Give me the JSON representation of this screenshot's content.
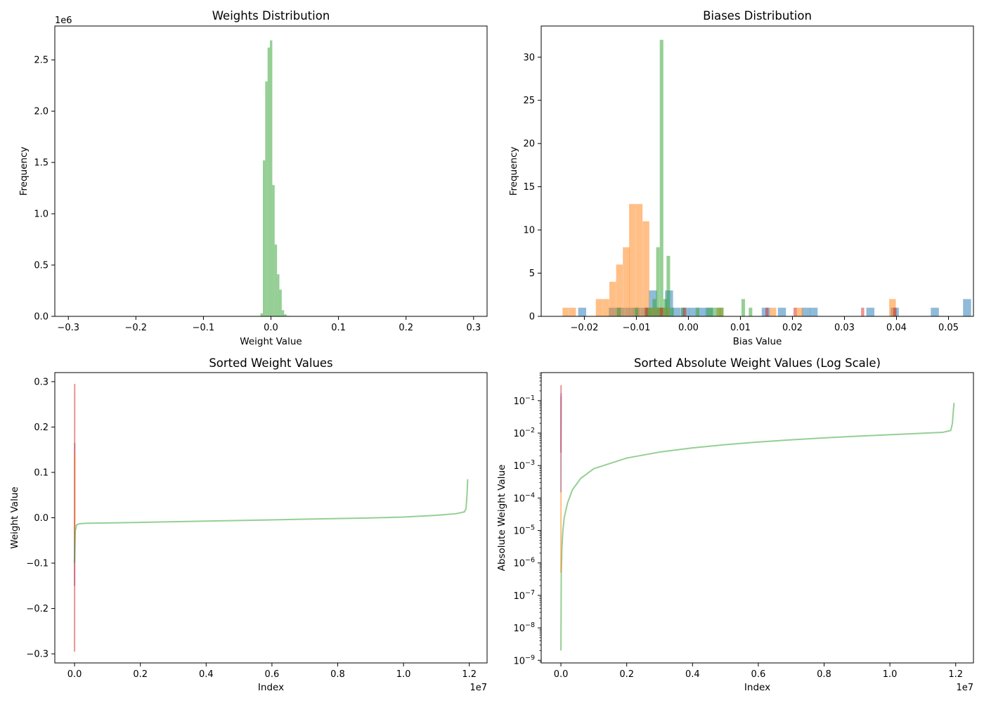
{
  "colors": {
    "blue": "#1f77b4",
    "orange": "#ff7f0e",
    "green": "#2ca02c",
    "red": "#d62728",
    "purple": "#9467bd",
    "bar_alpha": 0.5,
    "line_alpha": 0.5
  },
  "chart_data": [
    {
      "id": "weights",
      "type": "bar",
      "title": "Weights Distribution",
      "xlabel": "Weight Value",
      "ylabel": "Frequency",
      "xlim": [
        -0.32,
        0.32
      ],
      "ylim": [
        0,
        2830000
      ],
      "xticks": [
        -0.3,
        -0.2,
        -0.1,
        0.0,
        0.1,
        0.2,
        0.3
      ],
      "xtick_labels": [
        "−0.3",
        "−0.2",
        "−0.1",
        "0.0",
        "0.1",
        "0.2",
        "0.3"
      ],
      "yticks": [
        0,
        500000,
        1000000,
        1500000,
        2000000,
        2500000
      ],
      "ytick_labels": [
        "0.0",
        "0.5",
        "1.0",
        "1.5",
        "2.0",
        "2.5"
      ],
      "y_offset_label": "1e6",
      "series": [
        {
          "name": "green",
          "color": "green",
          "bin_width": 0.0035,
          "bins": [
            [
              -0.0155,
              30000
            ],
            [
              -0.012,
              1520000
            ],
            [
              -0.0085,
              2290000
            ],
            [
              -0.005,
              2620000
            ],
            [
              -0.0015,
              2690000
            ],
            [
              0.002,
              1280000
            ],
            [
              0.0055,
              700000
            ],
            [
              0.009,
              410000
            ],
            [
              0.0125,
              260000
            ],
            [
              0.016,
              60000
            ],
            [
              0.0195,
              20000
            ],
            [
              0.023,
              5000
            ]
          ]
        }
      ]
    },
    {
      "id": "biases",
      "type": "bar",
      "title": "Biases Distribution",
      "xlabel": "Bias Value",
      "ylabel": "Frequency",
      "xlim": [
        -0.0283,
        0.0548
      ],
      "ylim": [
        0,
        33.6
      ],
      "xticks": [
        -0.02,
        -0.01,
        0.0,
        0.01,
        0.02,
        0.03,
        0.04,
        0.05
      ],
      "xtick_labels": [
        "−0.02",
        "−0.01",
        "0.00",
        "0.01",
        "0.02",
        "0.03",
        "0.04",
        "0.05"
      ],
      "yticks": [
        0,
        5,
        10,
        15,
        20,
        25,
        30
      ],
      "ytick_labels": [
        "0",
        "5",
        "10",
        "15",
        "20",
        "25",
        "30"
      ],
      "series": [
        {
          "name": "blue",
          "color": "blue",
          "bin_width": 0.00155,
          "bins": [
            [
              -0.0212,
              1
            ],
            [
              -0.0153,
              1
            ],
            [
              -0.0138,
              1
            ],
            [
              -0.0122,
              1
            ],
            [
              -0.0107,
              1
            ],
            [
              -0.0091,
              1
            ],
            [
              -0.0076,
              3
            ],
            [
              -0.0061,
              1
            ],
            [
              -0.0045,
              3
            ],
            [
              -0.003,
              1
            ],
            [
              -0.0014,
              1
            ],
            [
              0.0001,
              1
            ],
            [
              0.0017,
              1
            ],
            [
              0.0032,
              1
            ],
            [
              0.0141,
              1
            ],
            [
              0.0172,
              1
            ],
            [
              0.0218,
              1
            ],
            [
              0.0233,
              1
            ],
            [
              0.0342,
              1
            ],
            [
              0.0389,
              1
            ],
            [
              0.0466,
              1
            ],
            [
              0.0528,
              2
            ]
          ]
        },
        {
          "name": "orange",
          "color": "orange",
          "bin_width": 0.00128,
          "bins": [
            [
              -0.0242,
              1
            ],
            [
              -0.0229,
              1
            ],
            [
              -0.0178,
              2
            ],
            [
              -0.0165,
              2
            ],
            [
              -0.0152,
              4
            ],
            [
              -0.0139,
              6
            ],
            [
              -0.0126,
              8
            ],
            [
              -0.0114,
              13
            ],
            [
              -0.0101,
              13
            ],
            [
              -0.0088,
              11
            ],
            [
              -0.0075,
              1
            ],
            [
              -0.0062,
              1
            ],
            [
              -0.0049,
              1
            ],
            [
              0.0054,
              1
            ],
            [
              0.0156,
              1
            ],
            [
              0.0207,
              1
            ],
            [
              0.0386,
              2
            ]
          ]
        },
        {
          "name": "green",
          "color": "green",
          "bin_width": 0.00068,
          "bins": [
            [
              -0.0137,
              1
            ],
            [
              -0.0103,
              1
            ],
            [
              -0.0082,
              1
            ],
            [
              -0.0076,
              1
            ],
            [
              -0.0069,
              2
            ],
            [
              -0.0062,
              8
            ],
            [
              -0.0055,
              32
            ],
            [
              -0.0048,
              2
            ],
            [
              -0.0042,
              7
            ],
            [
              -0.0035,
              1
            ],
            [
              -0.0014,
              1
            ],
            [
              0.0014,
              1
            ],
            [
              0.0034,
              1
            ],
            [
              0.0041,
              1
            ],
            [
              0.0048,
              1
            ],
            [
              0.0055,
              1
            ],
            [
              0.0061,
              1
            ],
            [
              0.0102,
              2
            ],
            [
              0.0116,
              1
            ]
          ]
        },
        {
          "name": "red",
          "color": "red",
          "bin_width": 0.0006,
          "bins": [
            [
              -0.0084,
              1
            ],
            [
              -0.0055,
              1
            ],
            [
              -0.001,
              1
            ],
            [
              0.0148,
              1
            ],
            [
              0.0202,
              1
            ],
            [
              0.0332,
              1
            ],
            [
              0.0394,
              1
            ]
          ]
        }
      ]
    },
    {
      "id": "sorted",
      "type": "line",
      "title": "Sorted Weight Values",
      "xlabel": "Index",
      "ylabel": "Weight Value",
      "xlim": [
        -600000,
        12540000
      ],
      "ylim": [
        -0.32,
        0.32
      ],
      "xticks": [
        0,
        2000000,
        4000000,
        6000000,
        8000000,
        10000000,
        12000000
      ],
      "xtick_labels": [
        "0.0",
        "0.2",
        "0.4",
        "0.6",
        "0.8",
        "1.0",
        "1.2"
      ],
      "x_offset_label": "1e7",
      "yticks": [
        -0.3,
        -0.2,
        -0.1,
        0.0,
        0.1,
        0.2,
        0.3
      ],
      "ytick_labels": [
        "−0.3",
        "−0.2",
        "−0.1",
        "0.0",
        "0.1",
        "0.2",
        "0.3"
      ],
      "series": [
        {
          "name": "purple",
          "color": "purple",
          "x": [
            0,
            2000,
            4000
          ],
          "y": [
            -0.15,
            0.0,
            0.165
          ]
        },
        {
          "name": "red",
          "color": "red",
          "x": [
            0,
            2000,
            4000
          ],
          "y": [
            -0.295,
            0.0,
            0.295
          ]
        },
        {
          "name": "orange",
          "color": "orange",
          "x": [
            0,
            2000,
            4000
          ],
          "y": [
            -0.05,
            0.0,
            0.14
          ]
        },
        {
          "name": "green",
          "color": "green",
          "x": [
            0,
            20000,
            60000,
            150000,
            400000,
            1000000,
            2000000,
            3000000,
            4000000,
            5000000,
            6000000,
            7000000,
            8000000,
            9000000,
            10000000,
            11000000,
            11600000,
            11850000,
            11900000,
            11930000,
            11950000
          ],
          "y": [
            -0.1,
            -0.03,
            -0.016,
            -0.013,
            -0.012,
            -0.0115,
            -0.0102,
            -0.0088,
            -0.0074,
            -0.006,
            -0.0046,
            -0.0032,
            -0.0018,
            -0.0004,
            0.0015,
            0.0055,
            0.009,
            0.013,
            0.02,
            0.05,
            0.085
          ]
        }
      ]
    },
    {
      "id": "abs",
      "type": "line",
      "title": "Sorted Absolute Weight Values (Log Scale)",
      "xlabel": "Index",
      "ylabel": "Absolute Weight Value",
      "yscale": "log",
      "xlim": [
        -600000,
        12540000
      ],
      "ylim": [
        8.3e-10,
        0.73
      ],
      "xticks": [
        0,
        2000000,
        4000000,
        6000000,
        8000000,
        10000000,
        12000000
      ],
      "xtick_labels": [
        "0.0",
        "0.2",
        "0.4",
        "0.6",
        "0.8",
        "1.0",
        "1.2"
      ],
      "x_offset_label": "1e7",
      "yticks_exponents": [
        -9,
        -8,
        -7,
        -6,
        -5,
        -4,
        -3,
        -2,
        -1
      ],
      "series": [
        {
          "name": "green",
          "color": "green",
          "x": [
            0,
            10000,
            30000,
            60000,
            100000,
            200000,
            350000,
            600000,
            1000000,
            2000000,
            3000000,
            4000000,
            5000000,
            6000000,
            7000000,
            8000000,
            9000000,
            10000000,
            11000000,
            11600000,
            11850000,
            11900000,
            11930000,
            11950000
          ],
          "y": [
            2e-09,
            5e-07,
            3e-06,
            1e-05,
            2.5e-05,
            7e-05,
            0.00018,
            0.0004,
            0.0008,
            0.0017,
            0.0026,
            0.0035,
            0.0044,
            0.0053,
            0.0062,
            0.0071,
            0.008,
            0.0089,
            0.0099,
            0.0105,
            0.012,
            0.02,
            0.05,
            0.085
          ]
        },
        {
          "name": "orange",
          "color": "orange",
          "x": [
            0,
            2000,
            4000
          ],
          "y": [
            5e-07,
            0.005,
            0.14
          ]
        },
        {
          "name": "red",
          "color": "red",
          "x": [
            0,
            2000,
            4000
          ],
          "y": [
            0.0025,
            0.05,
            0.3
          ]
        },
        {
          "name": "purple",
          "color": "purple",
          "x": [
            0,
            2000,
            4000
          ],
          "y": [
            0.00015,
            0.02,
            0.17
          ]
        }
      ]
    }
  ]
}
